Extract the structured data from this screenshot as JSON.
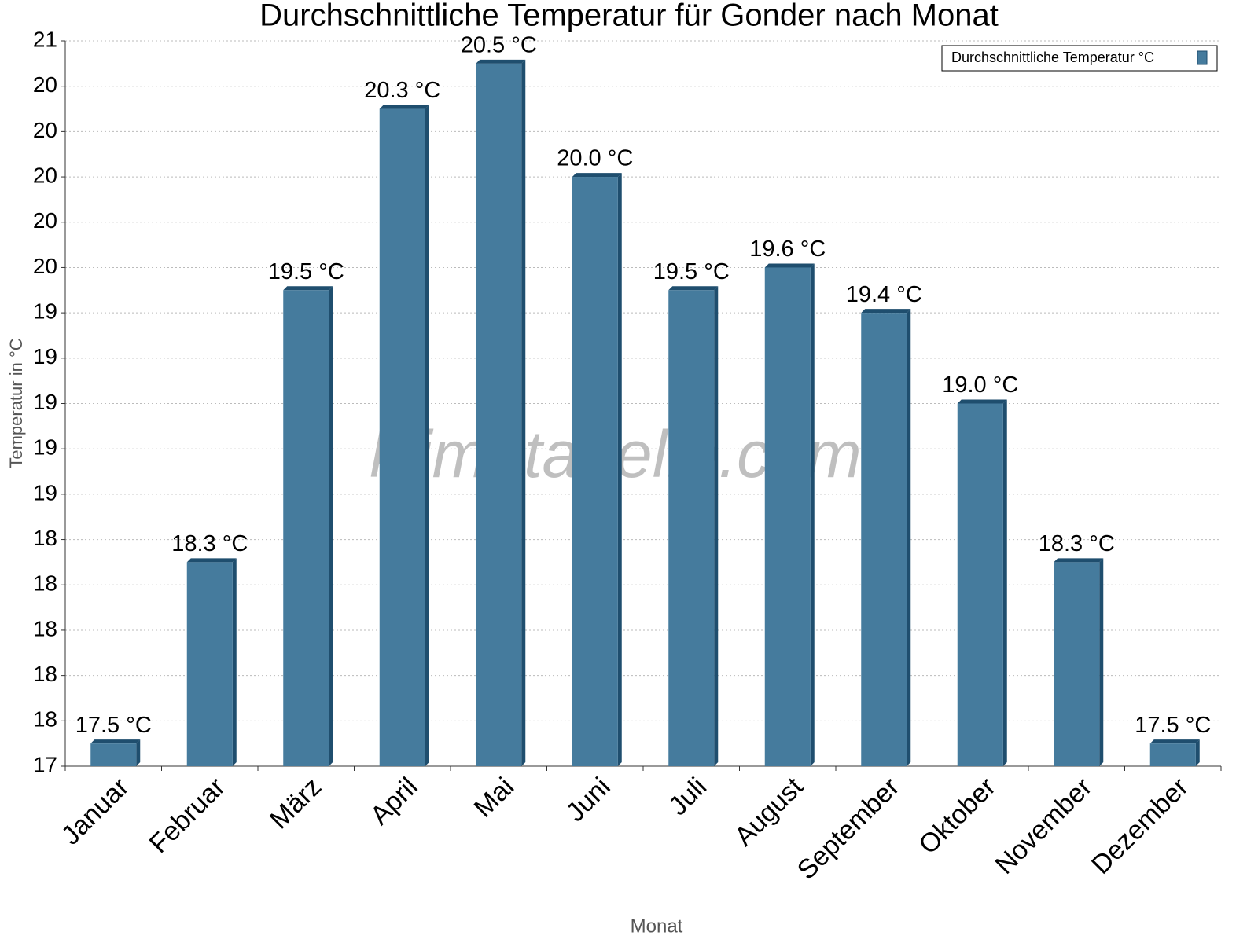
{
  "chart_data": {
    "type": "bar",
    "title": "Durchschnittliche Temperatur für Gonder nach Monat",
    "x_label": "Monat",
    "y_label": "Temperatur in °C",
    "watermark": "klimatabelle.com",
    "categories": [
      "Januar",
      "Februar",
      "März",
      "April",
      "Mai",
      "Juni",
      "Juli",
      "August",
      "September",
      "Oktober",
      "November",
      "Dezember"
    ],
    "series": [
      {
        "name": "Durchschnittliche Temperatur °C",
        "color": "#457b9d",
        "values": [
          17.5,
          18.3,
          19.5,
          20.3,
          20.5,
          20.0,
          19.5,
          19.6,
          19.4,
          19.0,
          18.3,
          17.5
        ],
        "value_labels": [
          "17.5 °C",
          "18.3 °C",
          "19.5 °C",
          "20.3 °C",
          "20.5 °C",
          "20.0 °C",
          "19.5 °C",
          "19.6 °C",
          "19.4 °C",
          "19.0 °C",
          "18.3 °C",
          "17.5 °C"
        ]
      }
    ],
    "ylim": [
      17.4,
      20.6
    ],
    "yticks": [
      {
        "value": 17.4,
        "label": "17"
      },
      {
        "value": 17.6,
        "label": "18"
      },
      {
        "value": 17.8,
        "label": "18"
      },
      {
        "value": 18.0,
        "label": "18"
      },
      {
        "value": 18.2,
        "label": "18"
      },
      {
        "value": 18.4,
        "label": "18"
      },
      {
        "value": 18.6,
        "label": "19"
      },
      {
        "value": 18.8,
        "label": "19"
      },
      {
        "value": 19.0,
        "label": "19"
      },
      {
        "value": 19.2,
        "label": "19"
      },
      {
        "value": 19.4,
        "label": "19"
      },
      {
        "value": 19.6,
        "label": "20"
      },
      {
        "value": 19.8,
        "label": "20"
      },
      {
        "value": 20.0,
        "label": "20"
      },
      {
        "value": 20.2,
        "label": "20"
      },
      {
        "value": 20.4,
        "label": "20"
      },
      {
        "value": 20.6,
        "label": "21"
      }
    ],
    "grid": true,
    "legend": "upper right"
  }
}
